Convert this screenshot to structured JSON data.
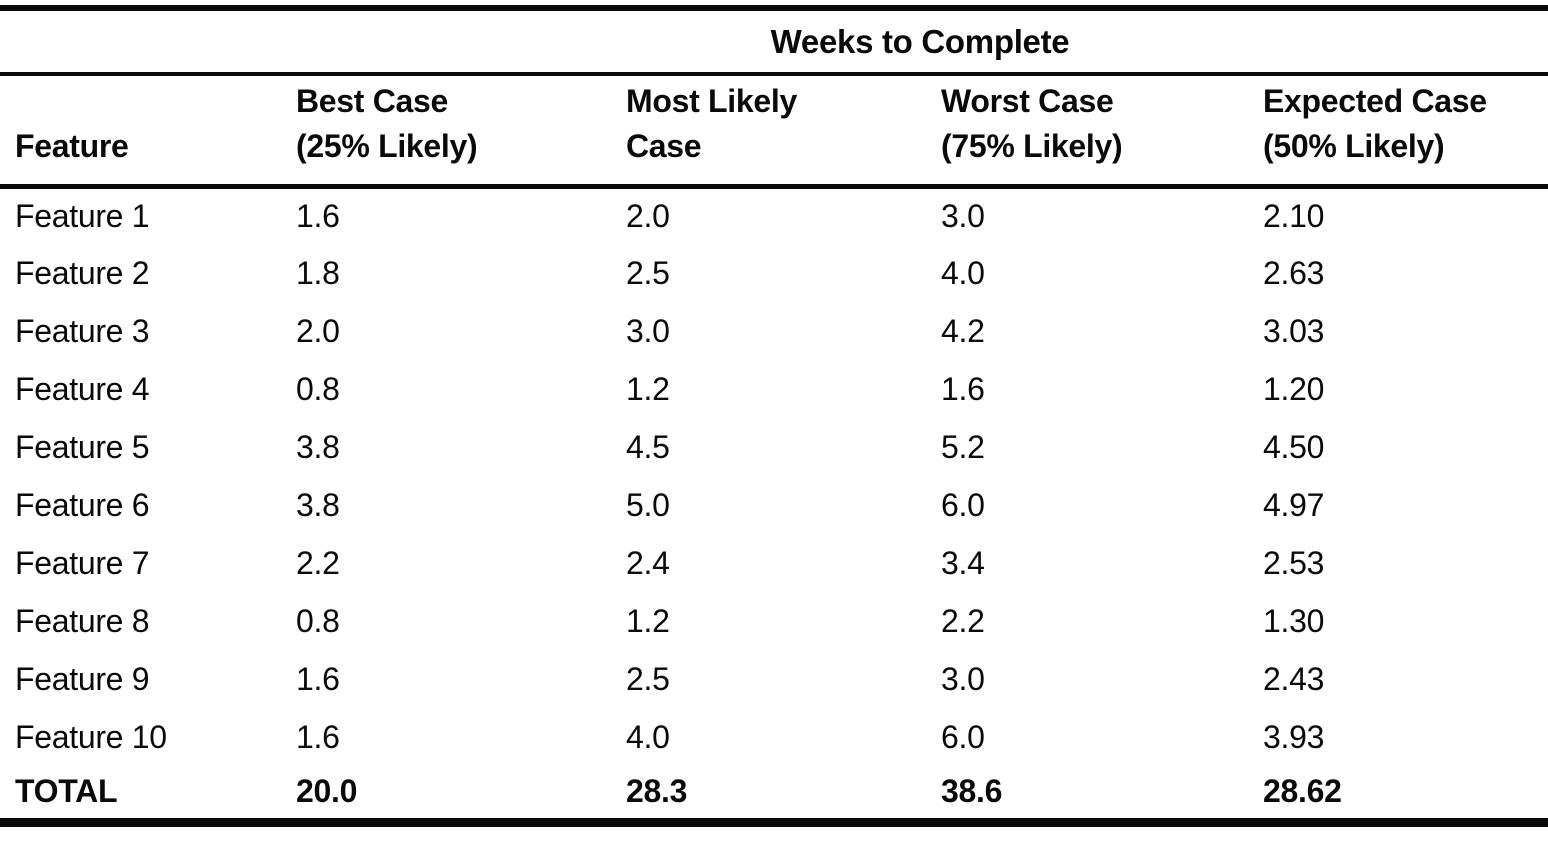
{
  "colors": {
    "ink": "#0a0a0a",
    "paper": "#ffffff"
  },
  "table": {
    "span_header": "Weeks to Complete",
    "columns": [
      {
        "label": "Feature"
      },
      {
        "label": "Best Case\n(25% Likely)"
      },
      {
        "label": "Most Likely\nCase"
      },
      {
        "label": "Worst Case\n(75% Likely)"
      },
      {
        "label": "Expected Case\n(50% Likely)"
      }
    ],
    "rows": [
      {
        "feature": "Feature 1",
        "best": "1.6",
        "most_likely": "2.0",
        "worst": "3.0",
        "expected": "2.10"
      },
      {
        "feature": "Feature 2",
        "best": "1.8",
        "most_likely": "2.5",
        "worst": "4.0",
        "expected": "2.63"
      },
      {
        "feature": "Feature 3",
        "best": "2.0",
        "most_likely": "3.0",
        "worst": "4.2",
        "expected": "3.03"
      },
      {
        "feature": "Feature 4",
        "best": "0.8",
        "most_likely": "1.2",
        "worst": "1.6",
        "expected": "1.20"
      },
      {
        "feature": "Feature 5",
        "best": "3.8",
        "most_likely": "4.5",
        "worst": "5.2",
        "expected": "4.50"
      },
      {
        "feature": "Feature 6",
        "best": "3.8",
        "most_likely": "5.0",
        "worst": "6.0",
        "expected": "4.97"
      },
      {
        "feature": "Feature 7",
        "best": "2.2",
        "most_likely": "2.4",
        "worst": "3.4",
        "expected": "2.53"
      },
      {
        "feature": "Feature 8",
        "best": "0.8",
        "most_likely": "1.2",
        "worst": "2.2",
        "expected": "1.30"
      },
      {
        "feature": "Feature 9",
        "best": "1.6",
        "most_likely": "2.5",
        "worst": "3.0",
        "expected": "2.43"
      },
      {
        "feature": "Feature 10",
        "best": "1.6",
        "most_likely": "4.0",
        "worst": "6.0",
        "expected": "3.93"
      }
    ],
    "total": {
      "feature": "TOTAL",
      "best": "20.0",
      "most_likely": "28.3",
      "worst": "38.6",
      "expected": "28.62"
    }
  }
}
